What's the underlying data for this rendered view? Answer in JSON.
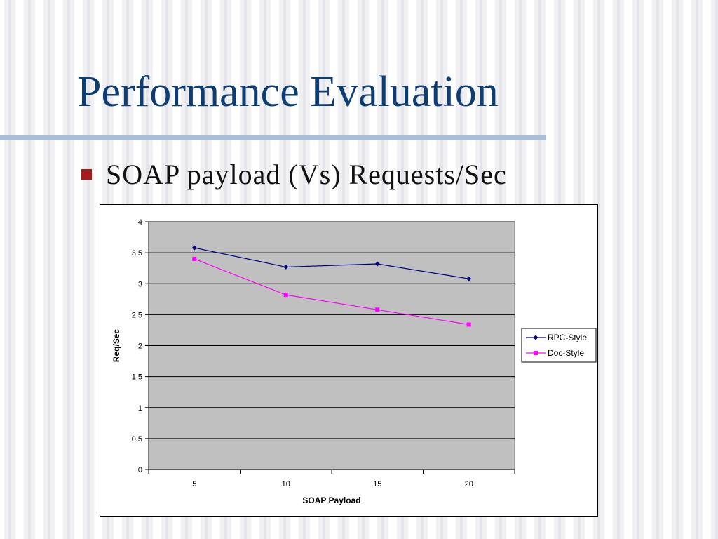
{
  "slide": {
    "title": "Performance Evaluation",
    "bullet": "SOAP payload (Vs) Requests/Sec"
  },
  "colors": {
    "title": "#0e3d73",
    "bullet": "#a51c1c",
    "plot_area": "#c0c0c0",
    "rpc_series": "#000080",
    "doc_series": "#ff00ff"
  },
  "chart_data": {
    "type": "line",
    "title": "",
    "xlabel": "SOAP Payload",
    "ylabel": "Req/Sec",
    "categories": [
      "5",
      "10",
      "15",
      "20"
    ],
    "ylim": [
      0,
      4
    ],
    "yticks": [
      "0",
      "0.5",
      "1",
      "1.5",
      "2",
      "2.5",
      "3",
      "3.5",
      "4"
    ],
    "grid": true,
    "legend": "right",
    "series": [
      {
        "name": "RPC-Style",
        "values": [
          3.58,
          3.27,
          3.32,
          3.08
        ],
        "color": "#000080",
        "marker": "diamond"
      },
      {
        "name": "Doc-Style",
        "values": [
          3.4,
          2.82,
          2.58,
          2.34
        ],
        "color": "#ff00ff",
        "marker": "square"
      }
    ]
  }
}
